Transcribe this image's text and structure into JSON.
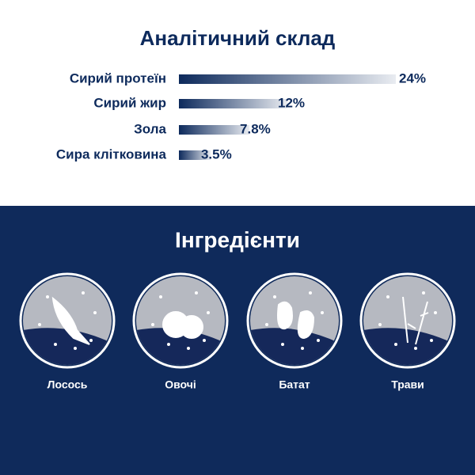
{
  "chart_data": {
    "type": "bar",
    "title": "Аналітичний склад",
    "categories": [
      "Сирий протеїн",
      "Сирий жир",
      "Зола",
      "Сира клітковина"
    ],
    "values": [
      24,
      12,
      7.8,
      3.5
    ],
    "value_labels": [
      "24%",
      "12%",
      "7.8%",
      "3.5%"
    ],
    "color": "#0d2a5c"
  },
  "ingredients": {
    "title": "Інгредієнти",
    "items": [
      "Лосось",
      "Овочі",
      "Батат",
      "Трави"
    ]
  }
}
